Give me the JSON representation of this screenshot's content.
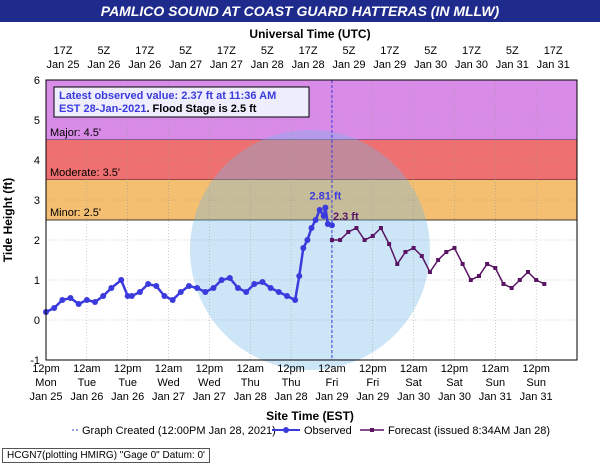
{
  "page_title": "PAMLICO SOUND AT COAST GUARD HATTERAS (IN MLLW)",
  "footer_text": "HCGN7(plotting HMIRG) \"Gage 0\" Datum: 0'",
  "colors": {
    "title_bg": "#1e2a8c",
    "major": "#d98be8",
    "moderate": "#ef7070",
    "minor": "#f4bf70",
    "action": "#ffe14a",
    "observed": "#3b3bdd",
    "forecast": "#5a1464"
  },
  "chart_data": {
    "type": "line",
    "title": "PAMLICO SOUND AT COAST GUARD HATTERAS (IN MLLW)",
    "xlabel": "Site Time (EST)",
    "x2label": "Universal Time (UTC)",
    "ylabel": "Tide Height (ft)",
    "ylim": [
      -1,
      6
    ],
    "yticks": [
      "-1",
      "0",
      "1",
      "2",
      "3",
      "4",
      "5",
      "6"
    ],
    "grid": true,
    "legend_placement": "bottom",
    "x_bottom_ticks": [
      {
        "time": "12pm",
        "day": "Mon",
        "date": "Jan 25"
      },
      {
        "time": "12am",
        "day": "Tue",
        "date": "Jan 26"
      },
      {
        "time": "12pm",
        "day": "Tue",
        "date": "Jan 26"
      },
      {
        "time": "12am",
        "day": "Wed",
        "date": "Jan 27"
      },
      {
        "time": "12pm",
        "day": "Wed",
        "date": "Jan 27"
      },
      {
        "time": "12am",
        "day": "Thu",
        "date": "Jan 28"
      },
      {
        "time": "12pm",
        "day": "Thu",
        "date": "Jan 28"
      },
      {
        "time": "12am",
        "day": "Fri",
        "date": "Jan 29"
      },
      {
        "time": "12pm",
        "day": "Fri",
        "date": "Jan 29"
      },
      {
        "time": "12am",
        "day": "Sat",
        "date": "Jan 30"
      },
      {
        "time": "12pm",
        "day": "Sat",
        "date": "Jan 30"
      },
      {
        "time": "12am",
        "day": "Sun",
        "date": "Jan 31"
      },
      {
        "time": "12pm",
        "day": "Sun",
        "date": "Jan 31"
      }
    ],
    "x_top_ticks": [
      {
        "time": "17Z",
        "date": "Jan 25"
      },
      {
        "time": "5Z",
        "date": "Jan 26"
      },
      {
        "time": "17Z",
        "date": "Jan 26"
      },
      {
        "time": "5Z",
        "date": "Jan 27"
      },
      {
        "time": "17Z",
        "date": "Jan 27"
      },
      {
        "time": "5Z",
        "date": "Jan 28"
      },
      {
        "time": "17Z",
        "date": "Jan 28"
      },
      {
        "time": "5Z",
        "date": "Jan 29"
      },
      {
        "time": "17Z",
        "date": "Jan 29"
      },
      {
        "time": "5Z",
        "date": "Jan 30"
      },
      {
        "time": "17Z",
        "date": "Jan 30"
      },
      {
        "time": "5Z",
        "date": "Jan 31"
      },
      {
        "time": "17Z",
        "date": "Jan 31"
      }
    ],
    "flood_categories": [
      {
        "name": "Major",
        "label": "Major: 4.5'",
        "from": 4.5,
        "to": 6,
        "color": "#d98be8"
      },
      {
        "name": "Moderate",
        "label": "Moderate: 3.5'",
        "from": 3.5,
        "to": 4.5,
        "color": "#ef7070"
      },
      {
        "name": "Minor",
        "label": "Minor: 2.5'",
        "from": 2.5,
        "to": 3.5,
        "color": "#f4bf70"
      }
    ],
    "info_box": {
      "line1": "Latest observed value: 2.37 ft at 11:36 AM",
      "line2_a": "EST 28-Jan-2021",
      "line2_b": ". Flood Stage is 2.5 ft"
    },
    "annotations": [
      {
        "text": "2.81 ft",
        "series": "Observed",
        "x": 3.42,
        "y": 2.81
      },
      {
        "text": "2.3 ft",
        "series": "Forecast",
        "x": 3.67,
        "y": 2.3
      }
    ],
    "graph_created_x": 3.5,
    "legend": {
      "created": "Graph Created (12:00PM Jan 28, 2021)",
      "observed": "Observed",
      "forecast": "Forecast (issued 8:34AM Jan 28)"
    },
    "x_units": "days after 12pm Jan 25 (EST)",
    "series": [
      {
        "name": "Observed",
        "color": "#3b3bdd",
        "x": [
          0,
          0.1,
          0.2,
          0.3,
          0.4,
          0.5,
          0.6,
          0.7,
          0.8,
          0.92,
          1.0,
          1.05,
          1.15,
          1.25,
          1.35,
          1.45,
          1.55,
          1.65,
          1.75,
          1.85,
          1.95,
          2.05,
          2.15,
          2.25,
          2.35,
          2.45,
          2.55,
          2.65,
          2.75,
          2.85,
          2.95,
          3.05,
          3.1,
          3.15,
          3.2,
          3.25,
          3.3,
          3.35,
          3.4,
          3.42,
          3.45,
          3.5
        ],
        "y": [
          0.2,
          0.3,
          0.5,
          0.55,
          0.4,
          0.5,
          0.45,
          0.6,
          0.8,
          1.0,
          0.6,
          0.6,
          0.7,
          0.9,
          0.85,
          0.6,
          0.5,
          0.7,
          0.85,
          0.8,
          0.7,
          0.8,
          1.0,
          1.05,
          0.8,
          0.7,
          0.9,
          0.95,
          0.8,
          0.7,
          0.6,
          0.5,
          1.1,
          1.8,
          2.0,
          2.3,
          2.5,
          2.75,
          2.6,
          2.81,
          2.4,
          2.37
        ]
      },
      {
        "name": "Forecast",
        "color": "#5a1464",
        "x": [
          3.5,
          3.6,
          3.7,
          3.8,
          3.9,
          4.0,
          4.1,
          4.2,
          4.3,
          4.4,
          4.5,
          4.6,
          4.7,
          4.8,
          4.9,
          5.0,
          5.1,
          5.2,
          5.3,
          5.4,
          5.5,
          5.6,
          5.7,
          5.8,
          5.9,
          6.0,
          6.1
        ],
        "y": [
          2.0,
          2.0,
          2.2,
          2.3,
          2.0,
          2.1,
          2.3,
          1.9,
          1.4,
          1.7,
          1.8,
          1.6,
          1.2,
          1.5,
          1.7,
          1.8,
          1.4,
          1.0,
          1.1,
          1.4,
          1.3,
          0.9,
          0.8,
          1.0,
          1.2,
          1.0,
          0.9
        ]
      }
    ]
  }
}
